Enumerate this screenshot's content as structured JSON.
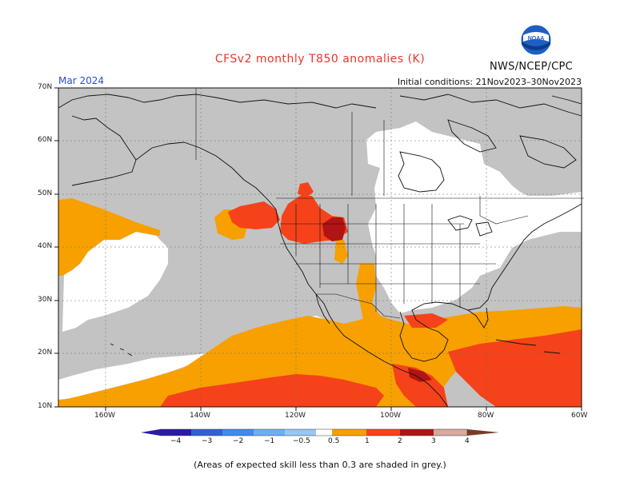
{
  "header": {
    "title": "CFSv2 monthly T850 anomalies (K)",
    "agency": "NWS/NCEP/CPC",
    "month": "Mar 2024",
    "initial_conditions": "Initial conditions: 21Nov2023–30Nov2023",
    "logo_text": "NOAA"
  },
  "map": {
    "lat_labels": [
      "70N",
      "60N",
      "50N",
      "40N",
      "30N",
      "20N",
      "10N"
    ],
    "lon_labels": [
      "160W",
      "140W",
      "120W",
      "100W",
      "80W",
      "60W"
    ],
    "colors": {
      "grey_low_skill": "#c3c3c3",
      "anom_05_1": "#f7a000",
      "anom_1_2": "#f5421a",
      "anom_2_3": "#b01414",
      "neutral": "#ffffff"
    }
  },
  "colorbar": {
    "labels": [
      "−4",
      "−3",
      "−2",
      "−1",
      "−0.5",
      "0.5",
      "1",
      "2",
      "3",
      "4"
    ],
    "colors": [
      "#2a1aa8",
      "#2f62d6",
      "#3d8cf0",
      "#6cb0f4",
      "#96c8f6",
      "#ffffff",
      "#f7a000",
      "#f5421a",
      "#b01414",
      "#d8a89c",
      "#7a3a2a"
    ]
  },
  "footnote": "(Areas of expected skill less than 0.3 are shaded in grey.)"
}
